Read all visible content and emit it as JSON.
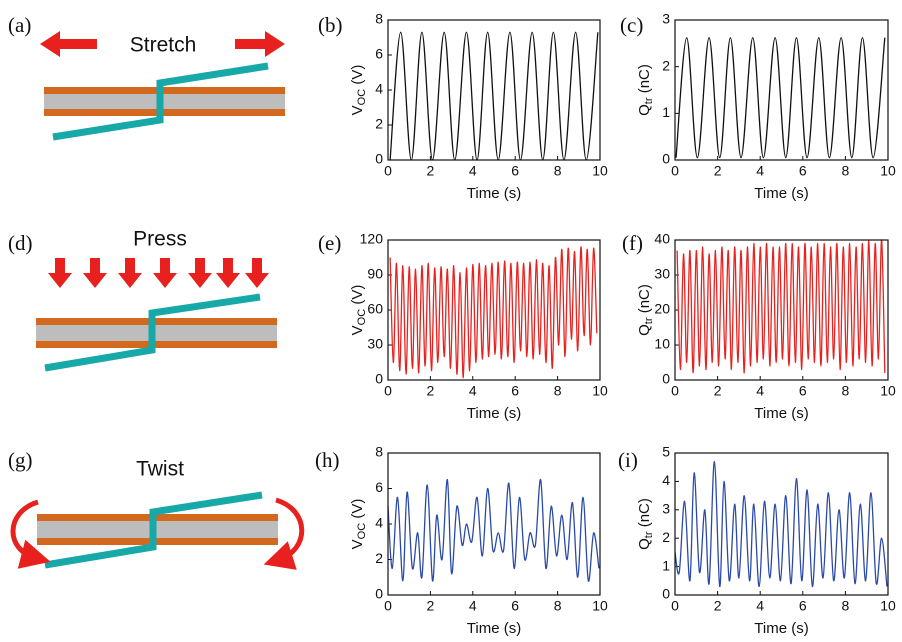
{
  "diagrams": [
    {
      "panel": "(a)",
      "label": "Stretch"
    },
    {
      "panel": "(d)",
      "label": "Press"
    },
    {
      "panel": "(g)",
      "label": "Twist"
    }
  ],
  "chart_data": [
    {
      "type": "line",
      "panel": "(b)",
      "xlabel": "Time (s)",
      "ylabel": {
        "main": "V",
        "sub": "OC",
        "unit": " (V)"
      },
      "color": "#111111",
      "xlim": [
        0,
        10
      ],
      "ylim": [
        0,
        8
      ],
      "xticks": [
        0,
        2,
        4,
        6,
        8,
        10
      ],
      "yticks": [
        0,
        2,
        4,
        6,
        8
      ],
      "x": [
        0.1,
        0.6,
        1.1,
        1.6,
        2.1,
        2.65,
        3.15,
        3.7,
        4.2,
        4.7,
        5.2,
        5.75,
        6.25,
        6.8,
        7.3,
        7.8,
        8.3,
        8.85,
        9.35,
        9.9
      ],
      "values": [
        0,
        7.3,
        0,
        7.3,
        0,
        7.3,
        0,
        7.3,
        0,
        7.3,
        0,
        7.3,
        0,
        7.3,
        0,
        7.3,
        0,
        7.3,
        0,
        7.3
      ]
    },
    {
      "type": "line",
      "panel": "(c)",
      "xlabel": "Time (s)",
      "ylabel": {
        "main": "Q",
        "sub": "tr",
        "unit": " (nC)"
      },
      "color": "#111111",
      "xlim": [
        0,
        10
      ],
      "ylim": [
        0,
        3
      ],
      "xticks": [
        0,
        2,
        4,
        6,
        8,
        10
      ],
      "yticks": [
        0,
        1,
        2,
        3
      ],
      "x": [
        0.05,
        0.55,
        1.05,
        1.6,
        2.1,
        2.6,
        3.1,
        3.65,
        4.15,
        4.7,
        5.2,
        5.7,
        6.2,
        6.75,
        7.25,
        7.8,
        8.3,
        8.8,
        9.3,
        9.85
      ],
      "values": [
        0.05,
        2.62,
        0.05,
        2.62,
        0.05,
        2.62,
        0.05,
        2.62,
        0.05,
        2.62,
        0.05,
        2.62,
        0.05,
        2.62,
        0.05,
        2.62,
        0.05,
        2.62,
        0.05,
        2.62
      ]
    },
    {
      "type": "line",
      "panel": "(e)",
      "xlabel": "Time (s)",
      "ylabel": {
        "main": "V",
        "sub": "OC",
        "unit": " (V)"
      },
      "color": "#e8211e",
      "xlim": [
        0,
        10
      ],
      "ylim": [
        0,
        120
      ],
      "xticks": [
        0,
        2,
        4,
        6,
        8,
        10
      ],
      "yticks": [
        0,
        30,
        60,
        90,
        120
      ],
      "x": [
        0.1,
        0.25,
        0.4,
        0.55,
        0.7,
        0.85,
        1,
        1.15,
        1.3,
        1.45,
        1.6,
        1.75,
        1.9,
        2.05,
        2.2,
        2.35,
        2.5,
        2.65,
        2.8,
        2.95,
        3.1,
        3.25,
        3.4,
        3.55,
        3.7,
        3.85,
        4,
        4.15,
        4.3,
        4.45,
        4.6,
        4.75,
        4.9,
        5.05,
        5.2,
        5.35,
        5.5,
        5.65,
        5.8,
        5.95,
        6.1,
        6.25,
        6.4,
        6.55,
        6.7,
        6.85,
        7,
        7.15,
        7.3,
        7.45,
        7.6,
        7.75,
        7.9,
        8.05,
        8.2,
        8.35,
        8.5,
        8.65,
        8.8,
        8.95,
        9.1,
        9.25,
        9.4,
        9.55,
        9.7,
        9.85
      ],
      "values": [
        105,
        15,
        100,
        8,
        98,
        5,
        97,
        10,
        95,
        6,
        98,
        12,
        100,
        8,
        96,
        15,
        97,
        20,
        95,
        10,
        98,
        5,
        92,
        2,
        96,
        8,
        99,
        15,
        100,
        18,
        98,
        20,
        100,
        22,
        101,
        18,
        102,
        20,
        100,
        15,
        101,
        25,
        100,
        20,
        101,
        18,
        103,
        22,
        100,
        15,
        98,
        10,
        105,
        30,
        112,
        20,
        113,
        35,
        110,
        25,
        114,
        38,
        112,
        30,
        113,
        40
      ]
    },
    {
      "type": "line",
      "panel": "(f)",
      "xlabel": "Time (s)",
      "ylabel": {
        "main": "Q",
        "sub": "tr",
        "unit": " (nC)"
      },
      "color": "#e8211e",
      "xlim": [
        0,
        10
      ],
      "ylim": [
        0,
        40
      ],
      "xticks": [
        0,
        2,
        4,
        6,
        8,
        10
      ],
      "yticks": [
        0,
        10,
        20,
        30,
        40
      ],
      "x": [
        0.1,
        0.25,
        0.4,
        0.55,
        0.7,
        0.85,
        1,
        1.15,
        1.3,
        1.45,
        1.6,
        1.75,
        1.9,
        2.05,
        2.2,
        2.35,
        2.5,
        2.65,
        2.8,
        2.95,
        3.1,
        3.25,
        3.4,
        3.55,
        3.7,
        3.85,
        4,
        4.15,
        4.3,
        4.45,
        4.6,
        4.75,
        4.9,
        5.05,
        5.2,
        5.35,
        5.5,
        5.65,
        5.8,
        5.95,
        6.1,
        6.25,
        6.4,
        6.55,
        6.7,
        6.85,
        7,
        7.15,
        7.3,
        7.45,
        7.6,
        7.75,
        7.9,
        8.05,
        8.2,
        8.35,
        8.5,
        8.65,
        8.8,
        8.95,
        9.1,
        9.25,
        9.4,
        9.55,
        9.7,
        9.85
      ],
      "values": [
        37,
        3,
        36,
        5,
        37,
        2,
        37,
        4,
        38,
        3,
        36,
        5,
        37,
        4,
        38,
        6,
        37,
        3,
        38,
        5,
        37,
        2,
        38,
        4,
        39,
        5,
        38,
        6,
        39,
        4,
        38,
        5,
        38,
        6,
        39,
        4,
        39,
        5,
        38,
        3,
        39,
        6,
        38,
        5,
        39,
        4,
        39,
        5,
        38,
        6,
        39,
        3,
        38,
        5,
        39,
        4,
        38,
        6,
        39,
        5,
        40,
        4,
        39,
        6,
        40,
        2
      ]
    },
    {
      "type": "line",
      "panel": "(h)",
      "xlabel": "Time (s)",
      "ylabel": {
        "main": "V",
        "sub": "OC",
        "unit": " (V)"
      },
      "color": "#2b4aa8",
      "xlim": [
        0,
        10
      ],
      "ylim": [
        0,
        8
      ],
      "xticks": [
        0,
        2,
        4,
        6,
        8,
        10
      ],
      "yticks": [
        0,
        2,
        4,
        6,
        8
      ],
      "x": [
        0,
        0.2,
        0.45,
        0.7,
        0.9,
        1.15,
        1.4,
        1.6,
        1.85,
        2.1,
        2.3,
        2.55,
        2.8,
        3.0,
        3.25,
        3.5,
        3.7,
        3.95,
        4.2,
        4.45,
        4.7,
        4.95,
        5.2,
        5.45,
        5.7,
        5.95,
        6.2,
        6.45,
        6.7,
        6.95,
        7.2,
        7.45,
        7.7,
        7.95,
        8.2,
        8.45,
        8.7,
        8.95,
        9.2,
        9.45,
        9.7,
        9.95
      ],
      "values": [
        5,
        1.5,
        5.5,
        0.8,
        5.8,
        1.5,
        3.5,
        1,
        6.2,
        0.8,
        4.5,
        2,
        6.5,
        1.2,
        5,
        2.8,
        4,
        3,
        5.5,
        2.2,
        6,
        2.5,
        3.5,
        2.5,
        6.3,
        1.5,
        5.5,
        2,
        3.5,
        2.8,
        6.5,
        1.5,
        5,
        2.2,
        4.5,
        2,
        5.2,
        1,
        5.5,
        0.8,
        3.5,
        1.5
      ]
    },
    {
      "type": "line",
      "panel": "(i)",
      "xlabel": "Time (s)",
      "ylabel": {
        "main": "Q",
        "sub": "tr",
        "unit": " (nC)"
      },
      "color": "#2b4aa8",
      "xlim": [
        0,
        10
      ],
      "ylim": [
        0,
        5
      ],
      "xticks": [
        0,
        2,
        4,
        6,
        8,
        10
      ],
      "yticks": [
        0,
        1,
        2,
        3,
        4,
        5
      ],
      "x": [
        0,
        0.2,
        0.45,
        0.7,
        0.9,
        1.15,
        1.4,
        1.6,
        1.85,
        2.1,
        2.3,
        2.55,
        2.8,
        3.0,
        3.25,
        3.5,
        3.7,
        3.95,
        4.2,
        4.45,
        4.7,
        4.95,
        5.2,
        5.45,
        5.7,
        5.95,
        6.2,
        6.45,
        6.7,
        6.95,
        7.2,
        7.45,
        7.7,
        7.95,
        8.2,
        8.45,
        8.7,
        8.95,
        9.2,
        9.45,
        9.7,
        9.95
      ],
      "values": [
        1.5,
        0.8,
        3.3,
        0.5,
        4.3,
        0.8,
        3,
        0.4,
        4.7,
        0.3,
        4,
        0.5,
        3.2,
        0.6,
        3.5,
        0.5,
        3.2,
        0.3,
        3.3,
        0.6,
        3.2,
        0.5,
        3.5,
        0.4,
        4.1,
        0.5,
        3.7,
        0.3,
        3.2,
        0.6,
        3.6,
        0.5,
        3,
        0.6,
        3.6,
        0.4,
        3.2,
        0.5,
        3.6,
        0.4,
        2,
        0.3
      ]
    }
  ]
}
